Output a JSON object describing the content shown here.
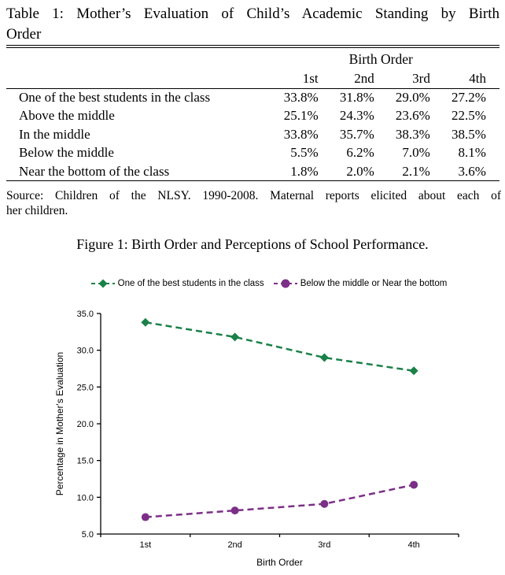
{
  "table": {
    "title_lines": [
      "Table 1: Mother’s Evaluation of Child’s Academic Standing by Birth",
      "Order"
    ],
    "group_header": "Birth Order",
    "columns": [
      "1st",
      "2nd",
      "3rd",
      "4th"
    ],
    "rows": [
      {
        "label": "One of the best students in the class",
        "values": [
          "33.8%",
          "31.8%",
          "29.0%",
          "27.2%"
        ]
      },
      {
        "label": "Above the middle",
        "values": [
          "25.1%",
          "24.3%",
          "23.6%",
          "22.5%"
        ]
      },
      {
        "label": "In the middle",
        "values": [
          "33.8%",
          "35.7%",
          "38.3%",
          "38.5%"
        ]
      },
      {
        "label": "Below the middle",
        "values": [
          "5.5%",
          "6.2%",
          "7.0%",
          "8.1%"
        ]
      },
      {
        "label": "Near the bottom of the class",
        "values": [
          "1.8%",
          "2.0%",
          "2.1%",
          "3.6%"
        ]
      }
    ],
    "source_lines": [
      "Source: Children of the NLSY. 1990-2008. Maternal reports elicited about each of",
      "her children."
    ]
  },
  "figure": {
    "caption": "Figure 1: Birth Order and Perceptions of School Performance."
  },
  "chart_data": {
    "type": "line",
    "categories": [
      "1st",
      "2nd",
      "3rd",
      "4th"
    ],
    "series": [
      {
        "name": "One of the best students in the class",
        "values": [
          33.8,
          31.8,
          29.0,
          27.2
        ],
        "color": "#1a8148",
        "marker": "diamond",
        "line_style": "dashed"
      },
      {
        "name": "Below the middle or Near the bottom",
        "values": [
          7.3,
          8.2,
          9.1,
          11.7
        ],
        "color": "#7c2f87",
        "marker": "circle",
        "line_style": "dashed"
      }
    ],
    "xlabel": "Birth Order",
    "ylabel": "Percentage in Mother's Evaluation",
    "ylim": [
      5.0,
      35.0
    ],
    "ytick_step": 5.0,
    "ytick_labels": [
      "5.0",
      "10.0",
      "15.0",
      "20.0",
      "25.0",
      "30.0",
      "35.0"
    ],
    "grid": false,
    "legend_position": "top",
    "axis_color": "#000000"
  }
}
